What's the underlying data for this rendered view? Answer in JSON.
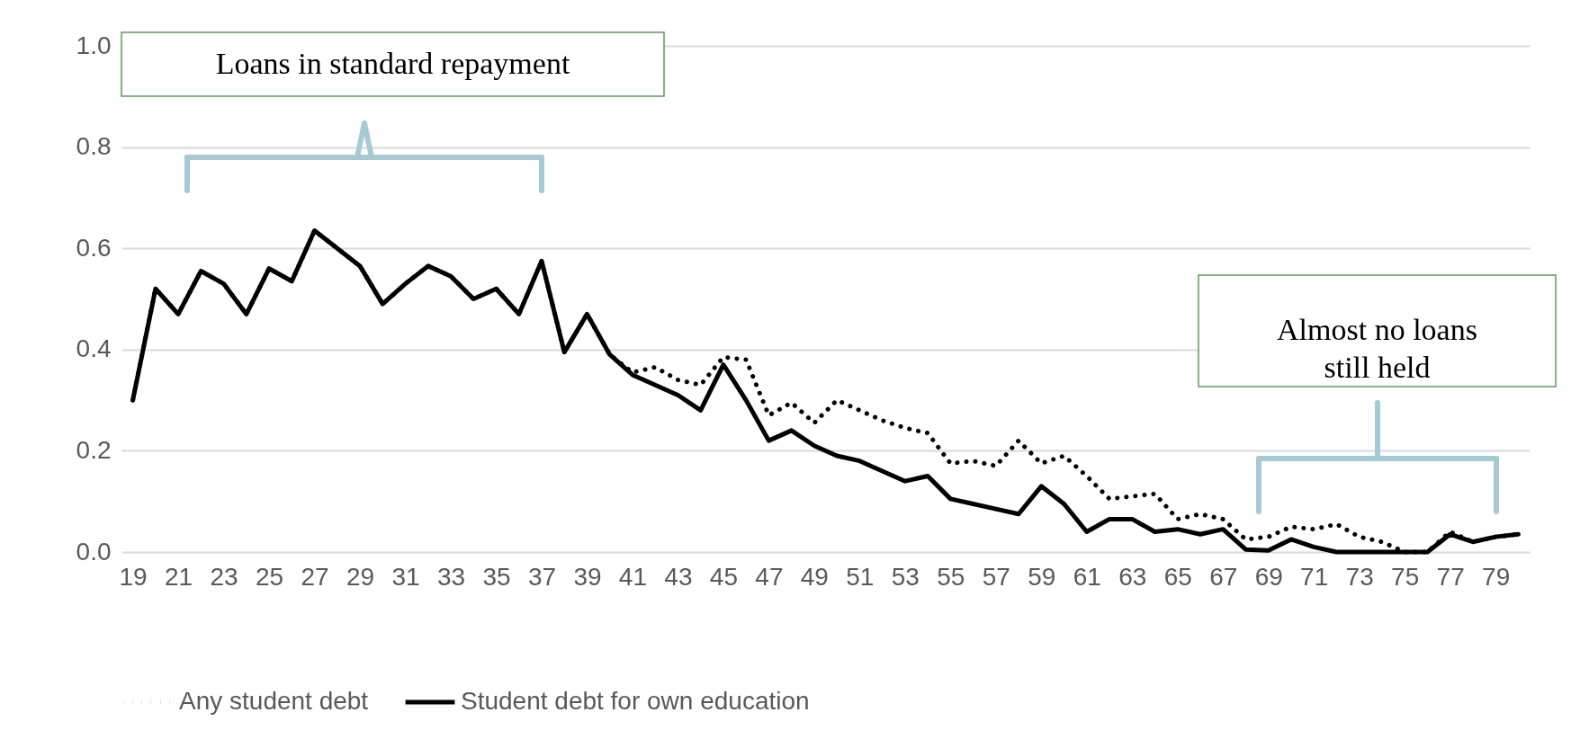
{
  "chart_data": {
    "type": "line",
    "categories": [
      "19",
      null,
      "21",
      null,
      "23",
      null,
      "25",
      null,
      "27",
      null,
      "29",
      null,
      "31",
      null,
      "33",
      null,
      "35",
      null,
      "37",
      null,
      "39",
      null,
      "41",
      null,
      "43",
      null,
      "45",
      null,
      "47",
      null,
      "49",
      null,
      "51",
      null,
      "53",
      null,
      "55",
      null,
      "57",
      null,
      "59",
      null,
      "61",
      null,
      "63",
      null,
      "65",
      null,
      "67",
      null,
      "69",
      null,
      "71",
      null,
      "73",
      null,
      "75",
      null,
      "77",
      null,
      "79",
      null
    ],
    "series": [
      {
        "name": "Any student debt",
        "color": "#000000",
        "line_style": "dotted",
        "values": [
          0.3,
          0.52,
          0.47,
          0.555,
          0.53,
          0.47,
          0.56,
          0.535,
          0.635,
          0.6,
          0.565,
          0.49,
          0.53,
          0.565,
          0.545,
          0.5,
          0.52,
          0.47,
          0.575,
          0.395,
          0.47,
          0.39,
          0.355,
          0.365,
          0.34,
          0.33,
          0.385,
          0.38,
          0.27,
          0.295,
          0.255,
          0.3,
          0.28,
          0.26,
          0.245,
          0.235,
          0.175,
          0.18,
          0.17,
          0.22,
          0.175,
          0.19,
          0.15,
          0.105,
          0.11,
          0.115,
          0.065,
          0.075,
          0.065,
          0.025,
          0.03,
          0.05,
          0.045,
          0.055,
          0.03,
          0.02,
          0.0,
          0.0,
          0.04,
          0.02,
          0.03,
          0.035
        ]
      },
      {
        "name": "Student debt for own education",
        "color": "#000000",
        "line_style": "solid",
        "values": [
          0.3,
          0.52,
          0.47,
          0.555,
          0.53,
          0.47,
          0.56,
          0.535,
          0.635,
          0.6,
          0.565,
          0.49,
          0.53,
          0.565,
          0.545,
          0.5,
          0.52,
          0.47,
          0.575,
          0.395,
          0.47,
          0.39,
          0.35,
          0.33,
          0.31,
          0.28,
          0.37,
          0.3,
          0.22,
          0.24,
          0.21,
          0.19,
          0.18,
          0.16,
          0.14,
          0.15,
          0.105,
          0.095,
          0.085,
          0.075,
          0.13,
          0.095,
          0.04,
          0.065,
          0.065,
          0.04,
          0.045,
          0.035,
          0.045,
          0.005,
          0.003,
          0.025,
          0.01,
          0.0,
          0.0,
          0.0,
          0.0,
          0.0,
          0.035,
          0.02,
          0.03,
          0.035
        ]
      }
    ],
    "ylim": [
      0,
      1.0
    ],
    "yticks": [
      {
        "value": 0,
        "label": "0.0"
      },
      {
        "value": 0.2,
        "label": "0.2"
      },
      {
        "value": 0.4,
        "label": "0.4"
      },
      {
        "value": 0.6,
        "label": "0.6"
      },
      {
        "value": 0.8,
        "label": "0.8"
      },
      {
        "value": 1.0,
        "label": "1.0"
      }
    ],
    "grid": "y",
    "legend": "bottom",
    "marker": "none",
    "annotations": [
      "Loans in standard repayment",
      "Almost no loans still held"
    ]
  }
}
